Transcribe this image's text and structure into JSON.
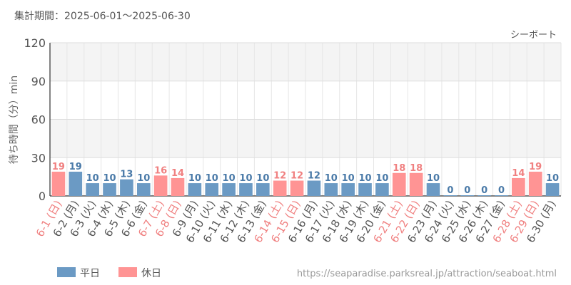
{
  "header": {
    "period": "集計期間：2025-06-01～2025-06-30"
  },
  "footer": {
    "url": "https://seaparadise.parksreal.jp/attraction/seaboat.html"
  },
  "colors": {
    "weekday": "#6b9ac4",
    "holiday": "#ff9494",
    "holiday_label": "#f08080",
    "text": "#555555",
    "grid": "#e6e6e6",
    "band": "#f4f4f4"
  },
  "chart_data": {
    "type": "bar",
    "title": "シーボート",
    "ylabel": "待ち時間（分）min",
    "xlabel": "",
    "ylim": [
      0,
      120
    ],
    "yticks": [
      0,
      30,
      60,
      90,
      120
    ],
    "grid": true,
    "legend_position": "bottom-left",
    "legend": [
      {
        "name": "平日",
        "key": "weekday"
      },
      {
        "name": "休日",
        "key": "holiday"
      }
    ],
    "categories": [
      "6-1 (日)",
      "6-2 (月)",
      "6-3 (火)",
      "6-4 (水)",
      "6-5 (木)",
      "6-6 (金)",
      "6-7 (土)",
      "6-8 (日)",
      "6-9 (月)",
      "6-10 (火)",
      "6-11 (水)",
      "6-12 (木)",
      "6-13 (金)",
      "6-14 (土)",
      "6-15 (日)",
      "6-16 (月)",
      "6-17 (火)",
      "6-18 (水)",
      "6-19 (木)",
      "6-20 (金)",
      "6-21 (土)",
      "6-22 (日)",
      "6-23 (月)",
      "6-24 (火)",
      "6-25 (水)",
      "6-26 (木)",
      "6-27 (金)",
      "6-28 (土)",
      "6-29 (日)",
      "6-30 (月)"
    ],
    "values": [
      19,
      19,
      10,
      10,
      13,
      10,
      16,
      14,
      10,
      10,
      10,
      10,
      10,
      12,
      12,
      12,
      10,
      10,
      10,
      10,
      18,
      18,
      10,
      0,
      0,
      0,
      0,
      14,
      19,
      10
    ],
    "day_type": [
      "holiday",
      "weekday",
      "weekday",
      "weekday",
      "weekday",
      "weekday",
      "holiday",
      "holiday",
      "weekday",
      "weekday",
      "weekday",
      "weekday",
      "weekday",
      "holiday",
      "holiday",
      "weekday",
      "weekday",
      "weekday",
      "weekday",
      "weekday",
      "holiday",
      "holiday",
      "weekday",
      "weekday",
      "weekday",
      "weekday",
      "weekday",
      "holiday",
      "holiday",
      "weekday"
    ]
  }
}
